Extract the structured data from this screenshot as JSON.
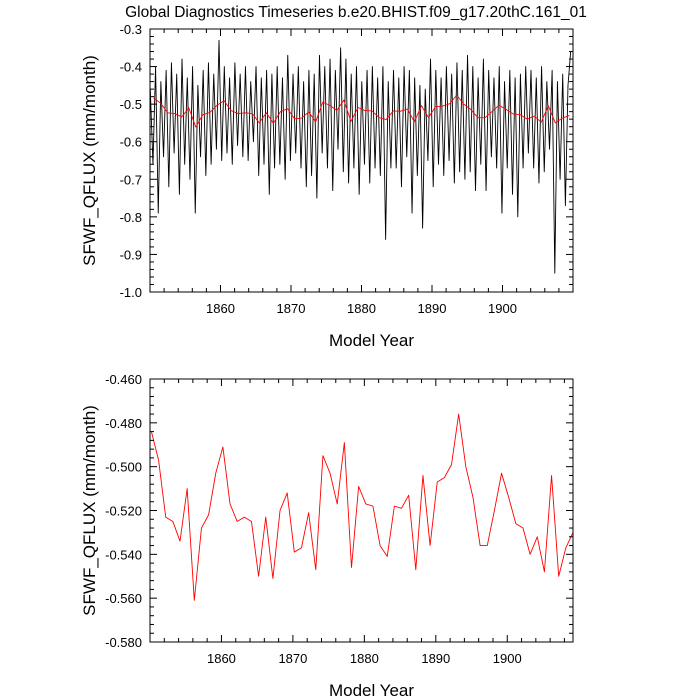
{
  "title": "Global Diagnostics Timeseries b.e20.BHIST.f09_g17.20thC.161_01",
  "chart_data": [
    {
      "type": "line",
      "xlabel": "Model Year",
      "ylabel": "SFWF_QFLUX (mm/month)",
      "xlim": [
        1850,
        1910
      ],
      "ylim": [
        -1.0,
        -0.3
      ],
      "xticks": [
        1860,
        1870,
        1880,
        1890,
        1900
      ],
      "xtick_labels": [
        "1860",
        "1870",
        "1880",
        "1890",
        "1900"
      ],
      "yticks": [
        -1.0,
        -0.9,
        -0.8,
        -0.7,
        -0.6,
        -0.5,
        -0.4,
        -0.3
      ],
      "ytick_labels": [
        "-1.0",
        "-0.9",
        "-0.8",
        "-0.7",
        "-0.6",
        "-0.5",
        "-0.4",
        "-0.3"
      ],
      "series": [
        {
          "color": "#000000",
          "x": [
            1850.04,
            1850.42,
            1850.79,
            1851.17,
            1851.54,
            1851.92,
            1852.29,
            1852.67,
            1853.04,
            1853.42,
            1853.79,
            1854.17,
            1854.54,
            1854.92,
            1855.29,
            1855.67,
            1856.04,
            1856.42,
            1856.79,
            1857.17,
            1857.54,
            1857.92,
            1858.29,
            1858.67,
            1859.04,
            1859.42,
            1859.79,
            1860.17,
            1860.54,
            1860.92,
            1861.29,
            1861.67,
            1862.04,
            1862.42,
            1862.79,
            1863.17,
            1863.54,
            1863.92,
            1864.29,
            1864.67,
            1865.04,
            1865.42,
            1865.79,
            1866.17,
            1866.54,
            1866.92,
            1867.29,
            1867.67,
            1868.04,
            1868.42,
            1868.79,
            1869.17,
            1869.54,
            1869.92,
            1870.29,
            1870.67,
            1871.04,
            1871.42,
            1871.79,
            1872.17,
            1872.54,
            1872.92,
            1873.29,
            1873.67,
            1874.04,
            1874.42,
            1874.79,
            1875.17,
            1875.54,
            1875.92,
            1876.29,
            1876.67,
            1877.04,
            1877.42,
            1877.79,
            1878.17,
            1878.54,
            1878.92,
            1879.29,
            1879.67,
            1880.04,
            1880.42,
            1880.79,
            1881.17,
            1881.54,
            1881.92,
            1882.29,
            1882.67,
            1883.04,
            1883.42,
            1883.79,
            1884.17,
            1884.54,
            1884.92,
            1885.29,
            1885.67,
            1886.04,
            1886.42,
            1886.79,
            1887.17,
            1887.54,
            1887.92,
            1888.29,
            1888.67,
            1889.04,
            1889.42,
            1889.79,
            1890.17,
            1890.54,
            1890.92,
            1891.29,
            1891.67,
            1892.04,
            1892.42,
            1892.79,
            1893.17,
            1893.54,
            1893.92,
            1894.29,
            1894.67,
            1895.04,
            1895.42,
            1895.79,
            1896.17,
            1896.54,
            1896.92,
            1897.29,
            1897.67,
            1898.04,
            1898.42,
            1898.79,
            1899.17,
            1899.54,
            1899.92,
            1900.29,
            1900.67,
            1901.04,
            1901.42,
            1901.79,
            1902.17,
            1902.54,
            1902.92,
            1903.29,
            1903.67,
            1904.04,
            1904.42,
            1904.79,
            1905.17,
            1905.54,
            1905.92,
            1906.29,
            1906.67,
            1907.04,
            1907.42,
            1907.79,
            1908.17,
            1908.54,
            1908.92,
            1909.29,
            1909.67
          ],
          "values": [
            -0.46,
            -0.66,
            -0.4,
            -0.79,
            -0.44,
            -0.64,
            -0.41,
            -0.72,
            -0.39,
            -0.63,
            -0.42,
            -0.74,
            -0.38,
            -0.66,
            -0.43,
            -0.7,
            -0.4,
            -0.79,
            -0.45,
            -0.64,
            -0.41,
            -0.69,
            -0.39,
            -0.66,
            -0.42,
            -0.62,
            -0.33,
            -0.65,
            -0.4,
            -0.63,
            -0.43,
            -0.66,
            -0.39,
            -0.61,
            -0.42,
            -0.64,
            -0.4,
            -0.65,
            -0.44,
            -0.6,
            -0.4,
            -0.69,
            -0.43,
            -0.66,
            -0.41,
            -0.74,
            -0.42,
            -0.67,
            -0.4,
            -0.66,
            -0.43,
            -0.7,
            -0.37,
            -0.65,
            -0.42,
            -0.63,
            -0.4,
            -0.67,
            -0.44,
            -0.72,
            -0.41,
            -0.69,
            -0.42,
            -0.75,
            -0.37,
            -0.63,
            -0.4,
            -0.67,
            -0.38,
            -0.73,
            -0.41,
            -0.62,
            -0.35,
            -0.68,
            -0.38,
            -0.71,
            -0.42,
            -0.67,
            -0.4,
            -0.74,
            -0.44,
            -0.66,
            -0.41,
            -0.71,
            -0.4,
            -0.67,
            -0.43,
            -0.69,
            -0.4,
            -0.86,
            -0.44,
            -0.67,
            -0.41,
            -0.67,
            -0.43,
            -0.72,
            -0.4,
            -0.64,
            -0.41,
            -0.79,
            -0.43,
            -0.69,
            -0.45,
            -0.83,
            -0.46,
            -0.65,
            -0.38,
            -0.72,
            -0.41,
            -0.66,
            -0.43,
            -0.69,
            -0.4,
            -0.65,
            -0.42,
            -0.71,
            -0.39,
            -0.68,
            -0.41,
            -0.7,
            -0.37,
            -0.68,
            -0.4,
            -0.73,
            -0.43,
            -0.66,
            -0.38,
            -0.73,
            -0.41,
            -0.64,
            -0.43,
            -0.67,
            -0.4,
            -0.79,
            -0.44,
            -0.67,
            -0.41,
            -0.74,
            -0.43,
            -0.8,
            -0.42,
            -0.67,
            -0.4,
            -0.63,
            -0.41,
            -0.67,
            -0.43,
            -0.71,
            -0.4,
            -0.68,
            -0.44,
            -0.62,
            -0.41,
            -0.95,
            -0.44,
            -0.7,
            -0.42,
            -0.77,
            -0.45,
            -0.36
          ]
        },
        {
          "color": "#ff0000",
          "x": [
            1850.5,
            1851.5,
            1852.5,
            1853.5,
            1854.5,
            1855.5,
            1856.5,
            1857.5,
            1858.5,
            1859.5,
            1860.5,
            1861.5,
            1862.5,
            1863.5,
            1864.5,
            1865.5,
            1866.5,
            1867.5,
            1868.5,
            1869.5,
            1870.5,
            1871.5,
            1872.5,
            1873.5,
            1874.5,
            1875.5,
            1876.5,
            1877.5,
            1878.5,
            1879.5,
            1880.5,
            1881.5,
            1882.5,
            1883.5,
            1884.5,
            1885.5,
            1886.5,
            1887.5,
            1888.5,
            1889.5,
            1890.5,
            1891.5,
            1892.5,
            1893.5,
            1894.5,
            1895.5,
            1896.5,
            1897.5,
            1898.5,
            1899.5,
            1900.5,
            1901.5,
            1902.5,
            1903.5,
            1904.5,
            1905.5,
            1906.5,
            1907.5,
            1908.5,
            1909.5
          ],
          "values": [
            -0.484,
            -0.497,
            -0.523,
            -0.525,
            -0.534,
            -0.51,
            -0.561,
            -0.528,
            -0.522,
            -0.503,
            -0.491,
            -0.517,
            -0.525,
            -0.523,
            -0.525,
            -0.55,
            -0.523,
            -0.551,
            -0.52,
            -0.512,
            -0.539,
            -0.537,
            -0.521,
            -0.547,
            -0.495,
            -0.503,
            -0.517,
            -0.489,
            -0.546,
            -0.509,
            -0.517,
            -0.518,
            -0.536,
            -0.541,
            -0.518,
            -0.519,
            -0.513,
            -0.547,
            -0.504,
            -0.536,
            -0.507,
            -0.505,
            -0.499,
            -0.476,
            -0.5,
            -0.514,
            -0.536,
            -0.536,
            -0.52,
            -0.503,
            -0.514,
            -0.526,
            -0.528,
            -0.54,
            -0.532,
            -0.548,
            -0.504,
            -0.55,
            -0.537,
            -0.53
          ]
        }
      ]
    },
    {
      "type": "line",
      "xlabel": "Model Year",
      "ylabel": "SFWF_QFLUX (mm/month)",
      "xlim": [
        1850,
        1909.2
      ],
      "ylim": [
        -0.58,
        -0.46
      ],
      "xticks": [
        1860,
        1870,
        1880,
        1890,
        1900
      ],
      "xtick_labels": [
        "1860",
        "1870",
        "1880",
        "1890",
        "1900"
      ],
      "yticks": [
        -0.58,
        -0.56,
        -0.54,
        -0.52,
        -0.5,
        -0.48,
        -0.46
      ],
      "ytick_labels": [
        "-0.580",
        "-0.560",
        "-0.540",
        "-0.520",
        "-0.500",
        "-0.480",
        "-0.460"
      ],
      "series": [
        {
          "color": "#ff0000",
          "x": [
            1850.2,
            1851.2,
            1852.2,
            1853.2,
            1854.2,
            1855.2,
            1856.2,
            1857.2,
            1858.2,
            1859.2,
            1860.2,
            1861.2,
            1862.2,
            1863.2,
            1864.2,
            1865.2,
            1866.2,
            1867.2,
            1868.2,
            1869.2,
            1870.2,
            1871.2,
            1872.2,
            1873.2,
            1874.2,
            1875.2,
            1876.2,
            1877.2,
            1878.2,
            1879.2,
            1880.2,
            1881.2,
            1882.2,
            1883.2,
            1884.2,
            1885.2,
            1886.2,
            1887.2,
            1888.2,
            1889.2,
            1890.2,
            1891.2,
            1892.2,
            1893.2,
            1894.2,
            1895.2,
            1896.2,
            1897.2,
            1898.2,
            1899.2,
            1900.2,
            1901.2,
            1902.2,
            1903.2,
            1904.2,
            1905.2,
            1906.2,
            1907.2,
            1908.2,
            1909.2
          ],
          "values": [
            -0.484,
            -0.497,
            -0.523,
            -0.525,
            -0.534,
            -0.51,
            -0.561,
            -0.528,
            -0.522,
            -0.503,
            -0.491,
            -0.517,
            -0.525,
            -0.523,
            -0.525,
            -0.55,
            -0.523,
            -0.551,
            -0.52,
            -0.512,
            -0.539,
            -0.537,
            -0.521,
            -0.547,
            -0.495,
            -0.503,
            -0.517,
            -0.489,
            -0.546,
            -0.509,
            -0.517,
            -0.518,
            -0.536,
            -0.541,
            -0.518,
            -0.519,
            -0.513,
            -0.547,
            -0.504,
            -0.536,
            -0.507,
            -0.505,
            -0.499,
            -0.476,
            -0.5,
            -0.514,
            -0.536,
            -0.536,
            -0.52,
            -0.503,
            -0.514,
            -0.526,
            -0.528,
            -0.54,
            -0.532,
            -0.548,
            -0.504,
            -0.55,
            -0.537,
            -0.53
          ]
        }
      ]
    }
  ]
}
